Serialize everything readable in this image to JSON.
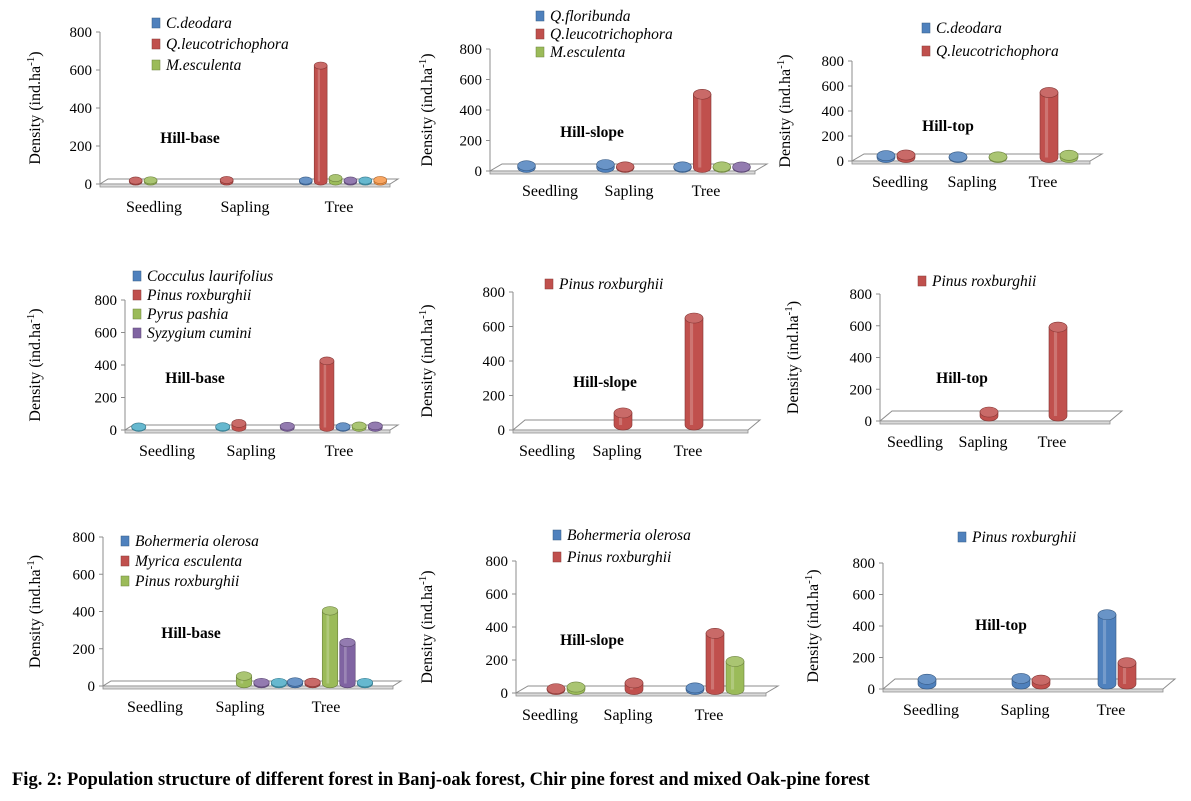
{
  "caption": "Fig.  2: Population structure of different forest in Banj-oak forest, Chir pine forest and mixed Oak-pine forest",
  "colors": {
    "blue": "#4f81bd",
    "red": "#c0504d",
    "green": "#9bbb59",
    "purple": "#8064a2",
    "orange": "#f79646",
    "aqua": "#4bacc6"
  },
  "chart_data": [
    {
      "type": "bar",
      "title": "Hill-base",
      "ylabel": "Density (ind.ha",
      "ylabel_sup": "-1",
      "ylabel_close": ")",
      "categories": [
        "Seedling",
        "Sapling",
        "Tree"
      ],
      "ylim": [
        0,
        800
      ],
      "yticks": [
        0,
        200,
        400,
        600,
        800
      ],
      "legend": [
        {
          "name": "C.deodara",
          "color": "blue"
        },
        {
          "name": "Q.leucotrichophora",
          "color": "red"
        },
        {
          "name": "M.esculenta",
          "color": "green"
        }
      ],
      "series": [
        {
          "color": "blue",
          "values": [
            null,
            null,
            5
          ]
        },
        {
          "color": "red",
          "values": [
            5,
            8,
            610
          ]
        },
        {
          "color": "green",
          "values": [
            6,
            null,
            18
          ]
        },
        {
          "color": "purple",
          "values": [
            null,
            null,
            5
          ]
        },
        {
          "color": "aqua",
          "values": [
            null,
            null,
            5
          ]
        },
        {
          "color": "orange",
          "values": [
            null,
            null,
            8
          ]
        }
      ]
    },
    {
      "type": "bar",
      "title": "Hill-slope",
      "ylabel": "Density (ind.ha",
      "ylabel_sup": "-1",
      "ylabel_close": ")",
      "categories": [
        "Seedling",
        "Sapling",
        "Tree"
      ],
      "ylim": [
        0,
        800
      ],
      "yticks": [
        0,
        200,
        400,
        600,
        800
      ],
      "legend": [
        {
          "name": "Q.floribunda",
          "color": "blue"
        },
        {
          "name": "Q.leucotrichophora",
          "color": "red"
        },
        {
          "name": "M.esculenta",
          "color": "green"
        }
      ],
      "series": [
        {
          "color": "blue",
          "values": [
            12,
            20,
            5
          ]
        },
        {
          "color": "red",
          "values": [
            null,
            5,
            480
          ]
        },
        {
          "color": "green",
          "values": [
            null,
            null,
            5
          ]
        },
        {
          "color": "purple",
          "values": [
            null,
            null,
            4
          ]
        }
      ]
    },
    {
      "type": "bar",
      "title": "Hill-top",
      "ylabel": "Density (ind.ha",
      "ylabel_sup": "-1",
      "ylabel_close": ")",
      "categories": [
        "Seedling",
        "Sapling",
        "Tree"
      ],
      "ylim": [
        0,
        800
      ],
      "yticks": [
        0,
        200,
        400,
        600,
        800
      ],
      "legend": [
        {
          "name": "C.deodara",
          "color": "blue"
        },
        {
          "name": "Q.leucotrichophora",
          "color": "red"
        }
      ],
      "series": [
        {
          "color": "blue",
          "values": [
            15,
            5,
            null
          ]
        },
        {
          "color": "red",
          "values": [
            20,
            null,
            520
          ]
        },
        {
          "color": "green",
          "values": [
            null,
            5,
            18
          ]
        }
      ]
    },
    {
      "type": "bar",
      "title": "Hill-base",
      "ylabel": "Density (ind.ha",
      "ylabel_sup": "-1",
      "ylabel_close": ")",
      "categories": [
        "Seedling",
        "Sapling",
        "Tree"
      ],
      "ylim": [
        0,
        800
      ],
      "yticks": [
        0,
        200,
        400,
        600,
        800
      ],
      "legend": [
        {
          "name": "Cocculus laurifolius",
          "color": "blue"
        },
        {
          "name": "Pinus roxburghii",
          "color": "red"
        },
        {
          "name": "Pyrus pashia",
          "color": "green"
        },
        {
          "name": "Syzygium cumini",
          "color": "purple"
        }
      ],
      "series": [
        {
          "color": "aqua",
          "values": [
            4,
            5,
            null
          ]
        },
        {
          "color": "red",
          "values": [
            null,
            25,
            410
          ]
        },
        {
          "color": "blue",
          "values": [
            null,
            null,
            5
          ]
        },
        {
          "color": "green",
          "values": [
            null,
            null,
            10
          ]
        },
        {
          "color": "purple",
          "values": [
            null,
            8,
            10
          ]
        }
      ]
    },
    {
      "type": "bar",
      "title": "Hill-slope",
      "ylabel": "Density (ind.ha",
      "ylabel_sup": "-1",
      "ylabel_close": ")",
      "categories": [
        "Seedling",
        "Sapling",
        "Tree"
      ],
      "ylim": [
        0,
        800
      ],
      "yticks": [
        0,
        200,
        400,
        600,
        800
      ],
      "legend": [
        {
          "name": "Pinus roxburghii",
          "color": "red"
        }
      ],
      "series": [
        {
          "color": "red",
          "values": [
            null,
            70,
            620
          ]
        }
      ]
    },
    {
      "type": "bar",
      "title": "Hill-top",
      "ylabel": "Density (ind.ha",
      "ylabel_sup": "-1",
      "ylabel_close": ")",
      "categories": [
        "Seedling",
        "Sapling",
        "Tree"
      ],
      "ylim": [
        0,
        800
      ],
      "yticks": [
        0,
        200,
        400,
        600,
        800
      ],
      "legend": [
        {
          "name": "Pinus roxburghii",
          "color": "red"
        }
      ],
      "series": [
        {
          "color": "red",
          "values": [
            null,
            25,
            560
          ]
        }
      ]
    },
    {
      "type": "bar",
      "title": "Hill-base",
      "ylabel": "Density (ind.ha",
      "ylabel_sup": "-1",
      "ylabel_close": ")",
      "categories": [
        "Seedling",
        "Sapling",
        "Tree"
      ],
      "ylim": [
        0,
        800
      ],
      "yticks": [
        0,
        200,
        400,
        600,
        800
      ],
      "legend": [
        {
          "name": "Bohermeria olerosa",
          "color": "blue"
        },
        {
          "name": "Myrica esculenta",
          "color": "red"
        },
        {
          "name": "Pinus roxburghii",
          "color": "green"
        }
      ],
      "series": [
        {
          "color": "blue",
          "values": [
            null,
            null,
            8
          ]
        },
        {
          "color": "red",
          "values": [
            null,
            null,
            6
          ]
        },
        {
          "color": "green",
          "values": [
            null,
            40,
            390
          ]
        },
        {
          "color": "purple",
          "values": [
            null,
            5,
            220
          ]
        },
        {
          "color": "aqua",
          "values": [
            null,
            5,
            5
          ]
        }
      ]
    },
    {
      "type": "bar",
      "title": "Hill-slope",
      "ylabel": "Density (ind.ha",
      "ylabel_sup": "-1",
      "ylabel_close": ")",
      "categories": [
        "Seedling",
        "Sapling",
        "Tree"
      ],
      "ylim": [
        0,
        800
      ],
      "yticks": [
        0,
        200,
        400,
        600,
        800
      ],
      "legend": [
        {
          "name": "Bohermeria olerosa",
          "color": "blue"
        },
        {
          "name": "Pinus roxburghii",
          "color": "red"
        }
      ],
      "series": [
        {
          "color": "blue",
          "values": [
            null,
            null,
            10
          ]
        },
        {
          "color": "red",
          "values": [
            5,
            40,
            340
          ]
        },
        {
          "color": "green",
          "values": [
            15,
            null,
            170
          ]
        }
      ]
    },
    {
      "type": "bar",
      "title": "Hill-top",
      "ylabel": "Density (ind.ha",
      "ylabel_sup": "-1",
      "ylabel_close": ")",
      "categories": [
        "Seedling",
        "Sapling",
        "Tree"
      ],
      "ylim": [
        0,
        800
      ],
      "yticks": [
        0,
        200,
        400,
        600,
        800
      ],
      "legend": [
        {
          "name": "Pinus roxburghii",
          "color": "blue"
        }
      ],
      "series": [
        {
          "color": "blue",
          "values": [
            30,
            35,
            440
          ]
        },
        {
          "color": "red",
          "values": [
            null,
            25,
            135
          ]
        }
      ]
    }
  ]
}
